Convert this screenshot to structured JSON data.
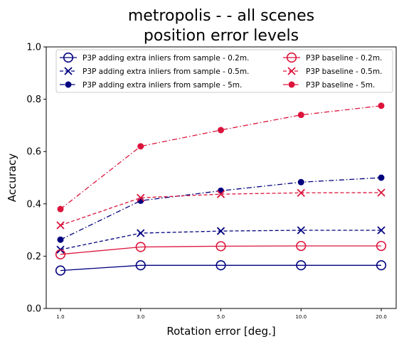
{
  "chart_data": {
    "type": "line",
    "title_line1": "metropolis -  - all scenes",
    "title_line2": "position error levels",
    "xlabel": "Rotation error [deg.]",
    "ylabel": "Accuracy",
    "categories": [
      "1.0",
      "3.0",
      "5.0",
      "10.0",
      "20.0"
    ],
    "ylim": [
      0.0,
      1.0
    ],
    "yticks": [
      "0.0",
      "0.2",
      "0.4",
      "0.6",
      "0.8",
      "1.0"
    ],
    "grid": false,
    "legend_position": "top",
    "series": [
      {
        "name": "P3P adding extra inliers from sample - 0.2m.",
        "color": "#00007f",
        "marker": "circle-open",
        "linestyle": "solid",
        "values": [
          0.145,
          0.165,
          0.165,
          0.165,
          0.165
        ]
      },
      {
        "name": "P3P adding extra inliers from sample - 0.5m.",
        "color": "#00007f",
        "marker": "x",
        "linestyle": "dashed",
        "values": [
          0.225,
          0.288,
          0.296,
          0.299,
          0.299
        ]
      },
      {
        "name": "P3P adding extra inliers from sample - 5m.",
        "color": "#00007f",
        "marker": "dot",
        "linestyle": "dashdot",
        "values": [
          0.263,
          0.412,
          0.45,
          0.483,
          0.5
        ]
      },
      {
        "name": "P3P baseline - 0.2m.",
        "color": "#dc143c",
        "marker": "circle-open",
        "linestyle": "solid",
        "values": [
          0.207,
          0.235,
          0.238,
          0.239,
          0.239
        ]
      },
      {
        "name": "P3P baseline - 0.5m.",
        "color": "#dc143c",
        "marker": "x",
        "linestyle": "dashed",
        "values": [
          0.318,
          0.423,
          0.437,
          0.442,
          0.443
        ]
      },
      {
        "name": "P3P baseline - 5m.",
        "color": "#dc143c",
        "marker": "dot",
        "linestyle": "dashdot",
        "values": [
          0.38,
          0.62,
          0.682,
          0.74,
          0.775
        ]
      }
    ]
  }
}
